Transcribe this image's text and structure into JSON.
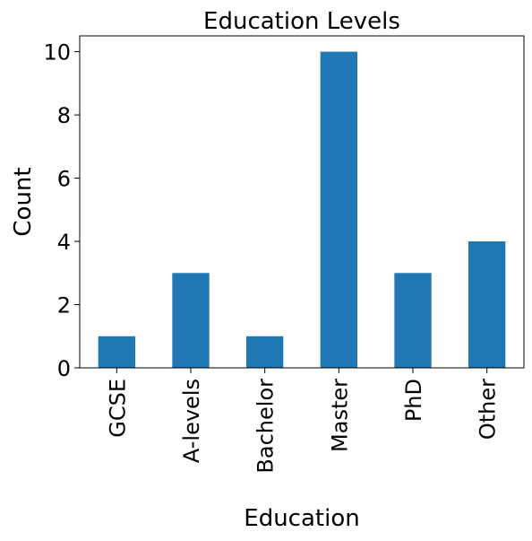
{
  "chart_data": {
    "type": "bar",
    "title": "Education Levels",
    "x_label": "Education",
    "y_label": "Count",
    "categories": [
      "GCSE",
      "A-levels",
      "Bachelor",
      "Master",
      "PhD",
      "Other"
    ],
    "values": [
      1,
      3,
      1,
      10,
      3,
      4
    ],
    "color": "#1f77b4",
    "ylim": [
      0,
      10.5
    ],
    "yticks": [
      0,
      2,
      4,
      6,
      8,
      10
    ],
    "grid": false
  }
}
